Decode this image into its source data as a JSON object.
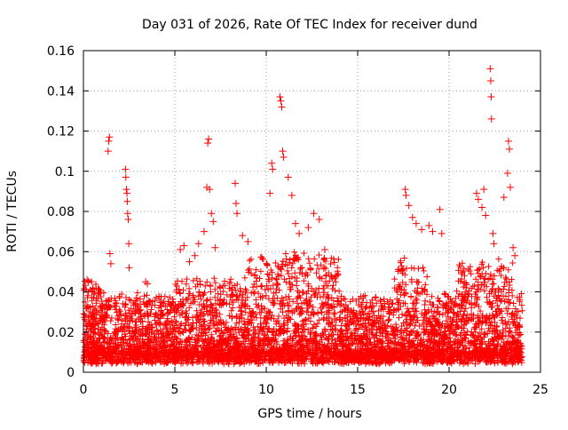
{
  "chart_data": {
    "type": "scatter",
    "title": "Day 031 of 2026, Rate Of TEC Index for receiver dund",
    "xlabel": "GPS time / hours",
    "ylabel": "ROTI / TECUs",
    "xlim": [
      0,
      25
    ],
    "ylim": [
      0,
      0.16
    ],
    "x_ticks": [
      0,
      5,
      10,
      15,
      20,
      25
    ],
    "x_tick_labels": [
      "0",
      "5",
      "10",
      "15",
      "20",
      "25"
    ],
    "y_ticks": [
      0,
      0.02,
      0.04,
      0.06,
      0.08,
      0.1,
      0.12,
      0.14,
      0.16
    ],
    "y_tick_labels": [
      "0",
      "0.02",
      "0.04",
      "0.06",
      "0.08",
      "0.1",
      "0.12",
      "0.14",
      "0.16"
    ],
    "grid": true,
    "marker": "+",
    "color": "#ff0000",
    "series": [
      {
        "name": "ROTI",
        "points": [
          [
            0.1,
            0.035
          ],
          [
            0.15,
            0.041
          ],
          [
            0.2,
            0.046
          ],
          [
            0.25,
            0.032
          ],
          [
            0.3,
            0.028
          ],
          [
            1.2,
            0.028
          ],
          [
            1.3,
            0.032
          ],
          [
            1.35,
            0.11
          ],
          [
            1.38,
            0.115
          ],
          [
            1.42,
            0.117
          ],
          [
            1.45,
            0.059
          ],
          [
            1.5,
            0.054
          ],
          [
            2.3,
            0.101
          ],
          [
            2.32,
            0.097
          ],
          [
            2.35,
            0.091
          ],
          [
            2.38,
            0.089
          ],
          [
            2.4,
            0.085
          ],
          [
            2.42,
            0.079
          ],
          [
            2.45,
            0.076
          ],
          [
            2.48,
            0.064
          ],
          [
            2.5,
            0.052
          ],
          [
            3.4,
            0.045
          ],
          [
            3.5,
            0.044
          ],
          [
            5.3,
            0.061
          ],
          [
            5.5,
            0.063
          ],
          [
            5.8,
            0.055
          ],
          [
            6.1,
            0.058
          ],
          [
            6.3,
            0.064
          ],
          [
            6.6,
            0.07
          ],
          [
            6.75,
            0.092
          ],
          [
            6.8,
            0.114
          ],
          [
            6.85,
            0.116
          ],
          [
            6.9,
            0.091
          ],
          [
            7.0,
            0.079
          ],
          [
            7.1,
            0.075
          ],
          [
            7.2,
            0.062
          ],
          [
            8.3,
            0.094
          ],
          [
            8.35,
            0.084
          ],
          [
            8.4,
            0.079
          ],
          [
            8.7,
            0.068
          ],
          [
            9.0,
            0.065
          ],
          [
            10.2,
            0.089
          ],
          [
            10.3,
            0.104
          ],
          [
            10.35,
            0.101
          ],
          [
            10.75,
            0.137
          ],
          [
            10.8,
            0.135
          ],
          [
            10.85,
            0.132
          ],
          [
            10.9,
            0.11
          ],
          [
            10.95,
            0.107
          ],
          [
            11.2,
            0.097
          ],
          [
            11.4,
            0.088
          ],
          [
            11.6,
            0.074
          ],
          [
            11.8,
            0.069
          ],
          [
            12.3,
            0.072
          ],
          [
            12.6,
            0.079
          ],
          [
            12.9,
            0.076
          ],
          [
            13.2,
            0.061
          ],
          [
            17.6,
            0.091
          ],
          [
            17.65,
            0.088
          ],
          [
            17.8,
            0.083
          ],
          [
            18.0,
            0.077
          ],
          [
            18.2,
            0.074
          ],
          [
            18.5,
            0.071
          ],
          [
            18.9,
            0.073
          ],
          [
            19.1,
            0.07
          ],
          [
            19.5,
            0.081
          ],
          [
            19.6,
            0.069
          ],
          [
            21.5,
            0.089
          ],
          [
            21.6,
            0.086
          ],
          [
            21.8,
            0.082
          ],
          [
            21.9,
            0.091
          ],
          [
            22.0,
            0.078
          ],
          [
            22.25,
            0.151
          ],
          [
            22.28,
            0.145
          ],
          [
            22.3,
            0.137
          ],
          [
            22.32,
            0.126
          ],
          [
            22.4,
            0.069
          ],
          [
            22.45,
            0.064
          ],
          [
            23.0,
            0.087
          ],
          [
            23.2,
            0.099
          ],
          [
            23.25,
            0.115
          ],
          [
            23.3,
            0.111
          ],
          [
            23.35,
            0.092
          ],
          [
            23.5,
            0.062
          ],
          [
            23.6,
            0.058
          ]
        ]
      }
    ]
  }
}
